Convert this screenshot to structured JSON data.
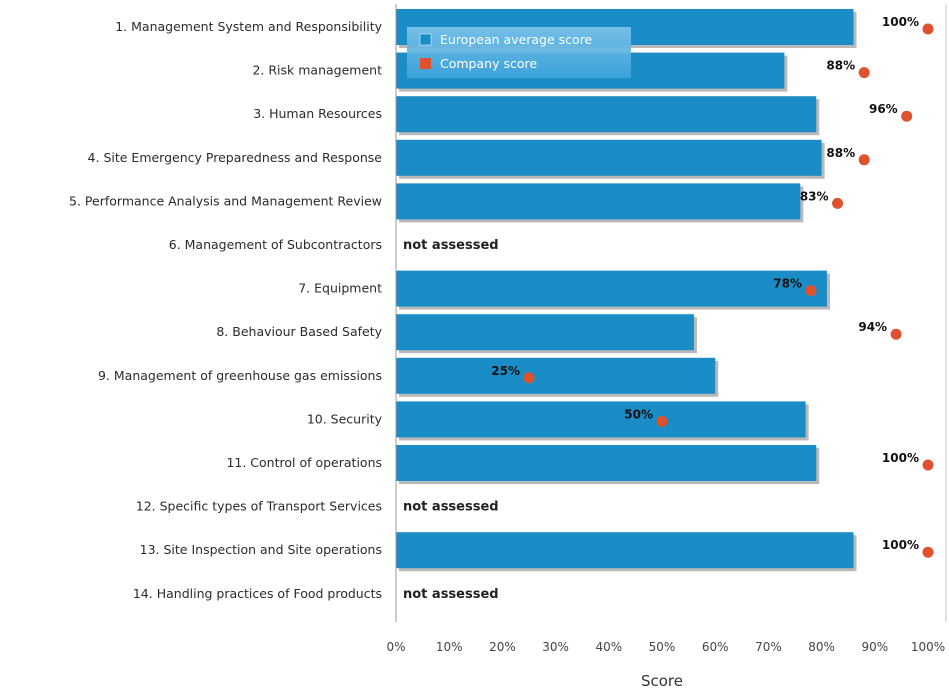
{
  "chart_data": {
    "type": "bar",
    "orientation": "horizontal",
    "xlabel": "Score",
    "xlim": [
      0,
      100
    ],
    "x_ticks": [
      "0%",
      "10%",
      "20%",
      "30%",
      "40%",
      "50%",
      "60%",
      "70%",
      "80%",
      "90%",
      "100%"
    ],
    "categories": [
      "1. Management System and Responsibility",
      "2. Risk management",
      "3. Human Resources",
      "4. Site Emergency Preparedness and Response",
      "5. Performance Analysis and Management Review",
      "6. Management of Subcontractors",
      "7. Equipment",
      "8. Behaviour Based Safety",
      "9. Management of greenhouse gas emissions",
      "10. Security",
      "11. Control of operations",
      "12. Specific types of Transport Services",
      "13. Site Inspection and Site operations",
      "14. Handling practices of Food products"
    ],
    "series": [
      {
        "name": "European average score",
        "type": "bar",
        "color": "#1a8cc6",
        "values": [
          86,
          73,
          79,
          80,
          76,
          null,
          81,
          56,
          60,
          77,
          79,
          null,
          86,
          null
        ]
      },
      {
        "name": "Company score",
        "type": "marker",
        "color": "#e0522f",
        "values": [
          100,
          88,
          96,
          88,
          83,
          null,
          78,
          94,
          25,
          50,
          100,
          null,
          100,
          null
        ],
        "labels": [
          "100%",
          "88%",
          "96%",
          "88%",
          "83%",
          "",
          "78%",
          "94%",
          "25%",
          "50%",
          "100%",
          "",
          "100%",
          ""
        ]
      }
    ],
    "not_assessed_label": "not assessed",
    "legend": "top-left",
    "grid": false
  }
}
